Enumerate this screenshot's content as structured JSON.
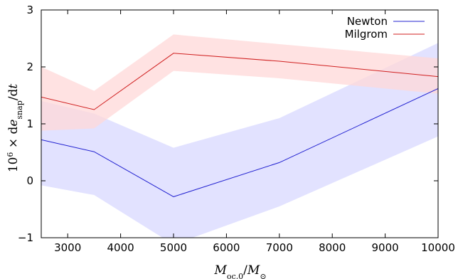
{
  "chart_data": {
    "type": "line",
    "title": "",
    "xlabel": "M_oc,0/M_⊙",
    "ylabel": "10^6 × de_snap/dt",
    "xlim": [
      2500,
      10000
    ],
    "ylim": [
      -1,
      3
    ],
    "xticks": [
      3000,
      4000,
      5000,
      6000,
      7000,
      8000,
      9000,
      10000
    ],
    "yticks": [
      -1,
      0,
      1,
      2,
      3
    ],
    "grid": false,
    "legend_position": "top-right",
    "x": [
      2500,
      3500,
      5000,
      7000,
      10000
    ],
    "series": [
      {
        "name": "Newton",
        "color": "#2020d0",
        "band_color": "#d8d8ff",
        "values": [
          0.72,
          0.51,
          -0.28,
          0.32,
          1.62
        ],
        "upper": [
          1.4,
          1.18,
          0.58,
          1.1,
          2.42
        ],
        "lower": [
          -0.08,
          -0.25,
          -1.12,
          -0.45,
          0.78
        ]
      },
      {
        "name": "Milgrom",
        "color": "#d02020",
        "band_color": "#ffd8d8",
        "values": [
          1.47,
          1.25,
          2.24,
          2.1,
          1.83
        ],
        "upper": [
          2.0,
          1.58,
          2.57,
          2.4,
          2.15
        ],
        "lower": [
          0.88,
          0.92,
          1.93,
          1.8,
          1.53
        ]
      }
    ]
  }
}
